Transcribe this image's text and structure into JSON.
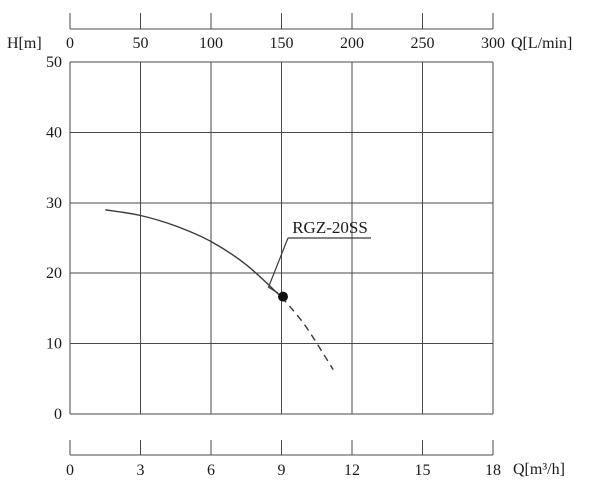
{
  "chart_data": {
    "type": "line",
    "grid": true,
    "y_axis": {
      "label": "H[m]",
      "range": [
        0,
        50
      ],
      "ticks": [
        50,
        40,
        30,
        20,
        10,
        0
      ]
    },
    "x_axis_top": {
      "label": "Q[L/min]",
      "range": [
        0,
        300
      ],
      "ticks": [
        0,
        50,
        100,
        150,
        200,
        250,
        300
      ]
    },
    "x_axis_bottom": {
      "label": "Q[m³/h]",
      "range": [
        0,
        18
      ],
      "ticks": [
        0,
        3,
        6,
        9,
        12,
        15,
        18
      ]
    },
    "series": [
      {
        "name": "RGZ-20SS",
        "solid_points_q_h": [
          [
            1.5,
            29.0
          ],
          [
            3.0,
            28.2
          ],
          [
            4.5,
            26.7
          ],
          [
            6.0,
            24.5
          ],
          [
            7.5,
            21.2
          ],
          [
            9.0,
            16.6
          ]
        ],
        "dashed_points_q_h": [
          [
            9.0,
            16.6
          ],
          [
            10.0,
            12.6
          ],
          [
            11.2,
            6.3
          ]
        ]
      }
    ],
    "marked_point": {
      "q_m3h": 9.0,
      "h_m": 16.6
    },
    "annotation": {
      "text": "RGZ-20SS",
      "underlined": true
    },
    "colors": {
      "grid": "#4a4a4a",
      "axis": "#4a4a4a",
      "curve": "#3a3a3a",
      "point": "#111111",
      "text": "#1a1a1a",
      "background": "#ffffff"
    }
  }
}
